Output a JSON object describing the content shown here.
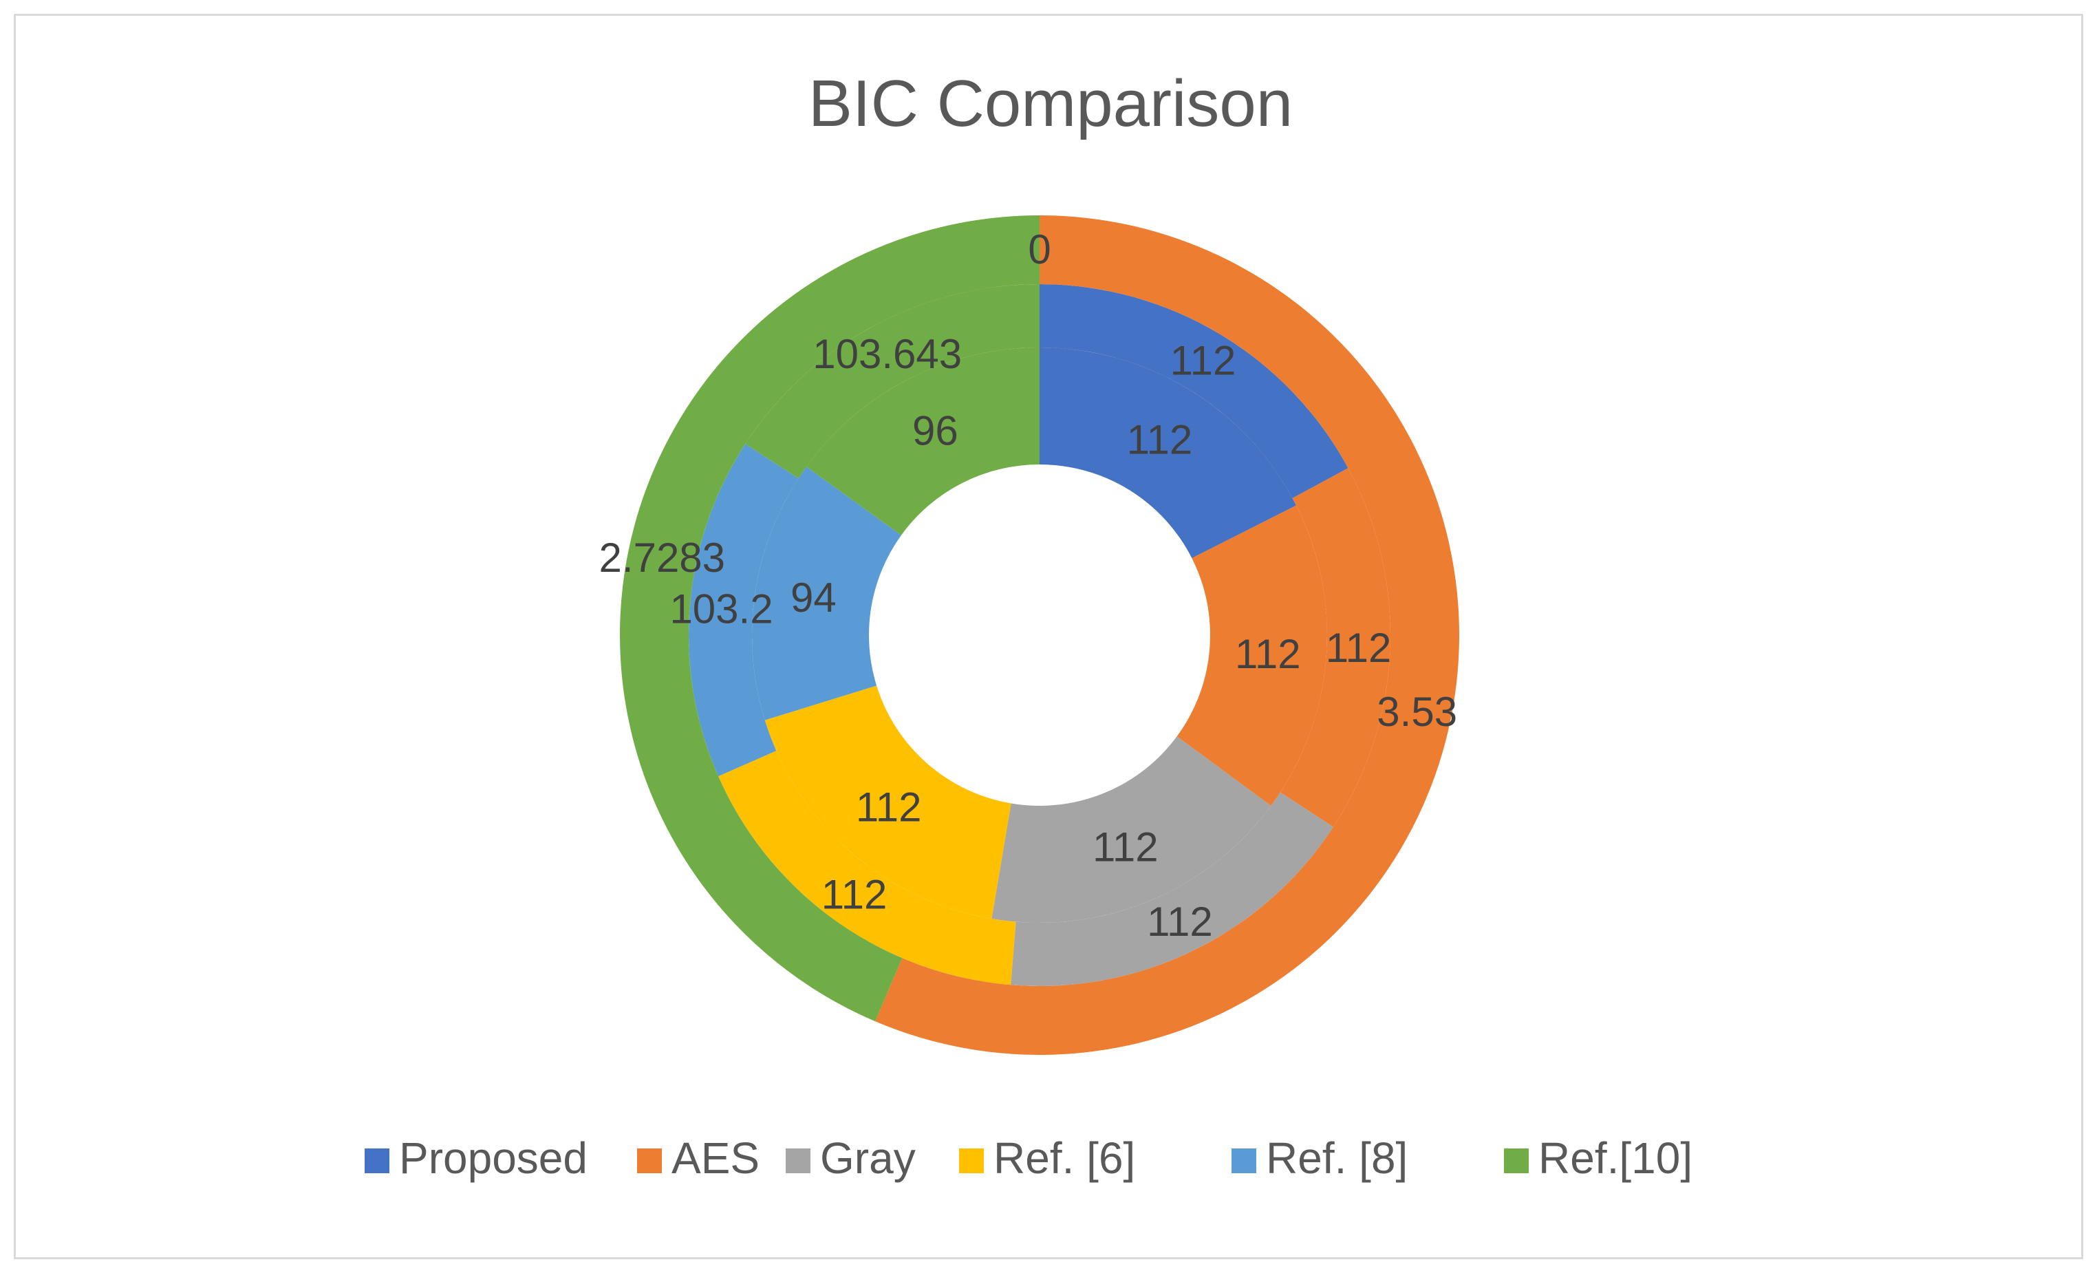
{
  "chart_data": {
    "type": "doughnut",
    "title": "BIC Comparison",
    "categories": [
      "Proposed",
      "AES",
      "Gray",
      "Ref. [6]",
      "Ref. [8]",
      "Ref.[10]"
    ],
    "colors": [
      "#4472C4",
      "#ED7D31",
      "#A5A5A5",
      "#FFC000",
      "#5B9BD5",
      "#70AD47"
    ],
    "series": [
      {
        "values": [
          112,
          112,
          112,
          112,
          94,
          96
        ]
      },
      {
        "values": [
          112,
          112,
          112,
          112,
          103.2,
          103.643
        ]
      },
      {
        "values": [
          0,
          3.53,
          0,
          0,
          0,
          2.7283
        ]
      }
    ],
    "data_labels": [
      [
        "112",
        "112",
        "112",
        "112",
        "94",
        "96"
      ],
      [
        "112",
        "112",
        "112",
        "112",
        "103.2",
        "103.643"
      ],
      [
        "0",
        "3.53",
        "",
        "",
        "",
        "2.7283"
      ]
    ],
    "legend_position": "bottom"
  }
}
